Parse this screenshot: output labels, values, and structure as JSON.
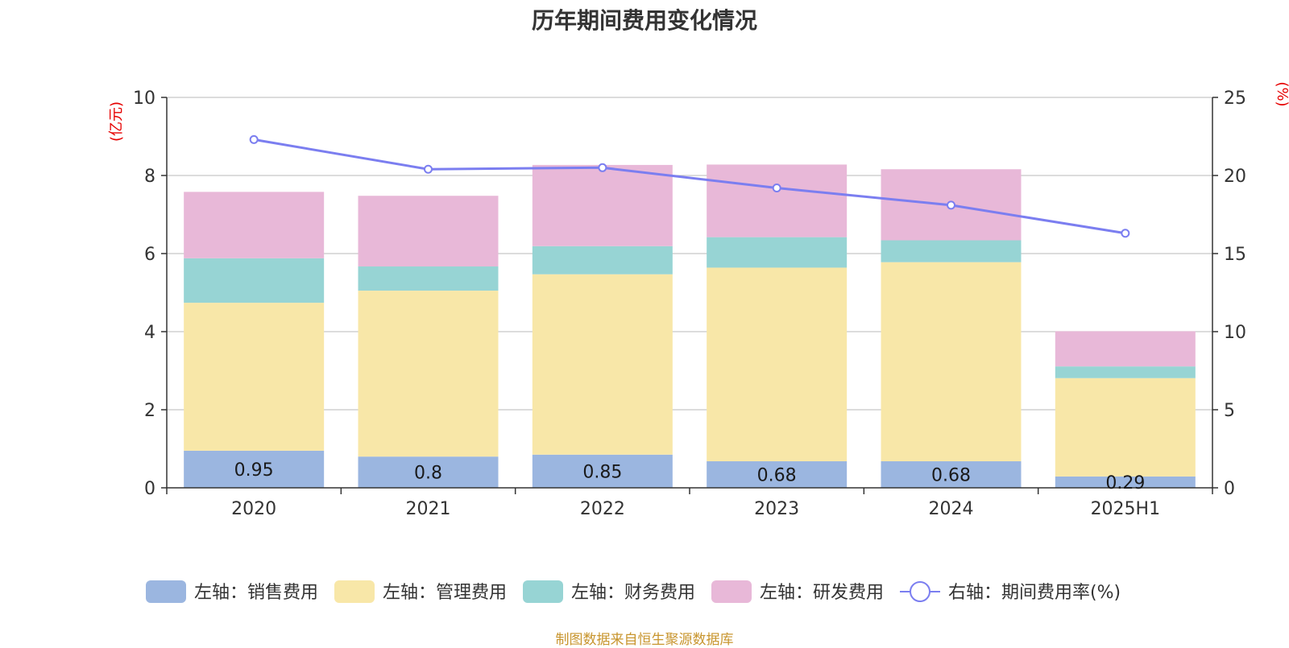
{
  "chart_data": {
    "type": "bar",
    "title": "历年期间费用变化情况",
    "categories": [
      "2020",
      "2021",
      "2022",
      "2023",
      "2024",
      "2025H1"
    ],
    "stacked": true,
    "left_axis": {
      "unit_label": "(亿元)",
      "ylim": [
        0,
        10
      ],
      "ticks": [
        0,
        2,
        4,
        6,
        8,
        10
      ]
    },
    "right_axis": {
      "unit_label": "(%)",
      "ylim": [
        0,
        25
      ],
      "ticks": [
        0,
        5,
        10,
        15,
        20,
        25
      ]
    },
    "grid": true,
    "legend_position": "bottom",
    "series": [
      {
        "name": "左轴：销售费用",
        "type": "bar",
        "axis": "left",
        "color": "#9bb6e0",
        "values": [
          0.95,
          0.8,
          0.85,
          0.68,
          0.68,
          0.29
        ],
        "data_labels": [
          "0.95",
          "0.8",
          "0.85",
          "0.68",
          "0.68",
          "0.29"
        ]
      },
      {
        "name": "左轴：管理费用",
        "type": "bar",
        "axis": "left",
        "color": "#f8e7a8",
        "values": [
          3.79,
          4.25,
          4.62,
          4.96,
          5.1,
          2.52
        ]
      },
      {
        "name": "左轴：财务费用",
        "type": "bar",
        "axis": "left",
        "color": "#97d4d4",
        "values": [
          1.14,
          0.62,
          0.72,
          0.78,
          0.56,
          0.3
        ]
      },
      {
        "name": "左轴：研发费用",
        "type": "bar",
        "axis": "left",
        "color": "#e8b8d8",
        "values": [
          1.7,
          1.81,
          2.08,
          1.86,
          1.82,
          0.9
        ]
      },
      {
        "name": "右轴：期间费用率(%)",
        "type": "line",
        "axis": "right",
        "color": "#7b7ef0",
        "values": [
          22.3,
          20.4,
          20.5,
          19.2,
          18.1,
          16.3
        ]
      }
    ]
  },
  "source_note": "制图数据来自恒生聚源数据库"
}
